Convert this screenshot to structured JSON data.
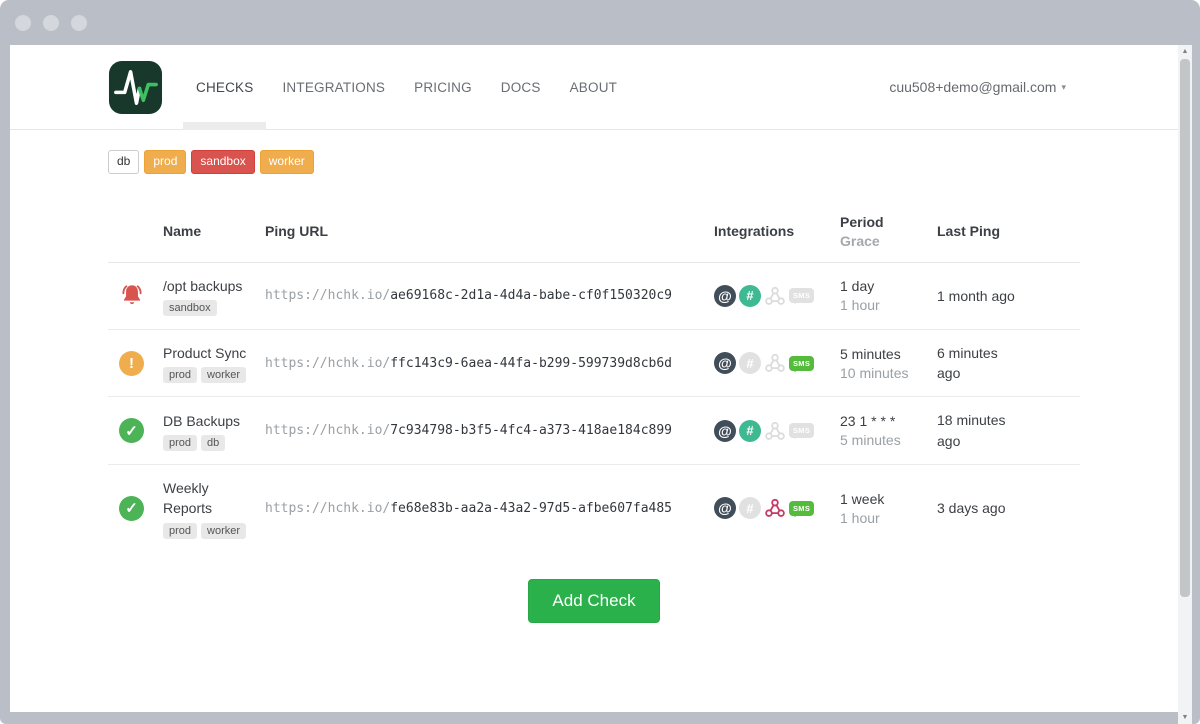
{
  "window": {
    "traffic_light_count": 3
  },
  "nav": {
    "brand": "healthchecks-logo",
    "items": [
      {
        "label": "CHECKS",
        "active": true
      },
      {
        "label": "INTEGRATIONS",
        "active": false
      },
      {
        "label": "PRICING",
        "active": false
      },
      {
        "label": "DOCS",
        "active": false
      },
      {
        "label": "ABOUT",
        "active": false
      }
    ],
    "account_email": "cuu508+demo@gmail.com"
  },
  "filters": [
    {
      "label": "db",
      "style": "default"
    },
    {
      "label": "prod",
      "style": "orange"
    },
    {
      "label": "sandbox",
      "style": "red"
    },
    {
      "label": "worker",
      "style": "orange"
    }
  ],
  "table": {
    "headers": {
      "name": "Name",
      "ping_url": "Ping URL",
      "integrations": "Integrations",
      "period": "Period",
      "grace": "Grace",
      "last_ping": "Last Ping"
    },
    "url_prefix": "https://hchk.io/",
    "rows": [
      {
        "status": "alert",
        "name": "/opt backups",
        "tags": [
          "sandbox"
        ],
        "url_code": "ae69168c-2d1a-4d4a-babe-cf0f150320c9",
        "integrations": [
          {
            "type": "email",
            "active": true
          },
          {
            "type": "slack",
            "active": true
          },
          {
            "type": "webhook",
            "active": false
          },
          {
            "type": "sms",
            "active": false
          }
        ],
        "period": "1 day",
        "grace": "1 hour",
        "last_ping": "1 month ago"
      },
      {
        "status": "late",
        "name": "Product Sync",
        "tags": [
          "prod",
          "worker"
        ],
        "url_code": "ffc143c9-6aea-44fa-b299-599739d8cb6d",
        "integrations": [
          {
            "type": "email",
            "active": true
          },
          {
            "type": "slack",
            "active": false
          },
          {
            "type": "webhook",
            "active": false
          },
          {
            "type": "sms",
            "active": true
          }
        ],
        "period": "5 minutes",
        "grace": "10 minutes",
        "last_ping": "6 minutes ago"
      },
      {
        "status": "up",
        "name": "DB Backups",
        "tags": [
          "prod",
          "db"
        ],
        "url_code": "7c934798-b3f5-4fc4-a373-418ae184c899",
        "integrations": [
          {
            "type": "email",
            "active": true
          },
          {
            "type": "slack",
            "active": true
          },
          {
            "type": "webhook",
            "active": false
          },
          {
            "type": "sms",
            "active": false
          }
        ],
        "period": "23 1 * * *",
        "grace": "5 minutes",
        "last_ping": "18 minutes ago"
      },
      {
        "status": "up",
        "name": "Weekly Reports",
        "tags": [
          "prod",
          "worker"
        ],
        "url_code": "fe68e83b-aa2a-43a2-97d5-afbe607fa485",
        "integrations": [
          {
            "type": "email",
            "active": true
          },
          {
            "type": "slack",
            "active": false
          },
          {
            "type": "webhook",
            "active": true
          },
          {
            "type": "sms",
            "active": true
          }
        ],
        "period": "1 week",
        "grace": "1 hour",
        "last_ping": "3 days ago"
      }
    ]
  },
  "add_check_label": "Add Check",
  "icons": {
    "email_glyph": "@",
    "slack_glyph": "#",
    "sms_label": "SMS",
    "warn_glyph": "!",
    "ok_glyph": "✓",
    "caret_glyph": "▾",
    "scroll_up_glyph": "▲",
    "scroll_down_glyph": "▼"
  },
  "colors": {
    "frame": "#b9bec7",
    "alert_red": "#d9534f",
    "warn_orange": "#f0ad4e",
    "ok_green": "#4cb356",
    "add_check_green": "#2bb14c",
    "email_active": "#414e5a",
    "slack_active": "#3eb991",
    "webhook_active": "#c73a63",
    "sms_active": "#55bb3d",
    "inactive_gray": "#e1e1e1"
  }
}
